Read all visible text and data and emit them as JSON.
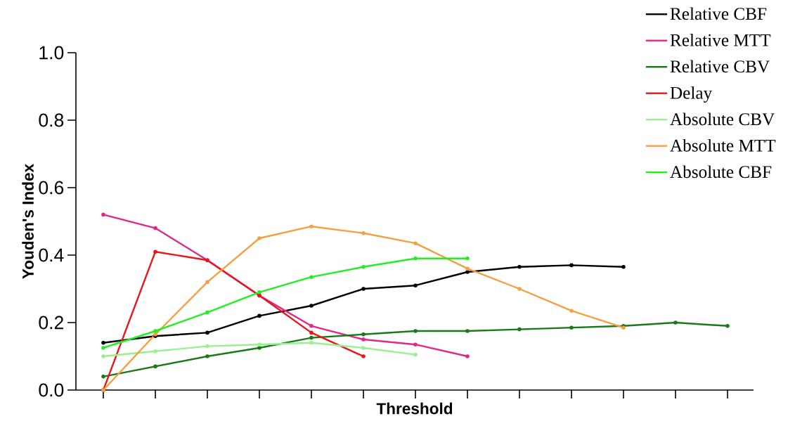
{
  "chart_data": {
    "type": "line",
    "xlabel": "Threshold",
    "ylabel": "Youden's Index",
    "categories": [
      null,
      null,
      null,
      null,
      null,
      null,
      null,
      null,
      null,
      null,
      null,
      null,
      null
    ],
    "ylim": [
      0,
      1.0
    ],
    "yticks": [
      {
        "value": 0,
        "label": "0.0"
      },
      0.2,
      0.4,
      0.6,
      0.8,
      {
        "value": 1.0,
        "label": "1.0"
      }
    ],
    "tick_labels": "y",
    "legend": "top right",
    "marker": "circle",
    "line_style": "solid",
    "series": [
      {
        "name": "Relative CBF",
        "color": "#000000",
        "values": [
          0.14,
          0.16,
          0.17,
          0.22,
          0.25,
          0.3,
          0.31,
          0.35,
          0.365,
          0.37,
          0.365,
          null,
          null
        ]
      },
      {
        "name": "Relative MTT",
        "color": "#e0288c",
        "values": [
          0.52,
          0.48,
          0.385,
          0.28,
          0.19,
          0.15,
          0.135,
          0.1,
          null,
          null,
          null,
          null,
          null
        ]
      },
      {
        "name": "Relative CBV",
        "color": "#1a7a1a",
        "values": [
          0.04,
          0.07,
          0.1,
          0.125,
          0.155,
          0.165,
          0.175,
          0.175,
          0.18,
          0.185,
          0.19,
          0.2,
          0.19
        ]
      },
      {
        "name": "Delay",
        "color": "#e8161a",
        "values": [
          0,
          0.41,
          0.385,
          0.28,
          0.17,
          0.1,
          null,
          null,
          null,
          null,
          null,
          null,
          null
        ]
      },
      {
        "name": "Absolute CBV",
        "color": "#98f090",
        "values": [
          0.1,
          0.115,
          0.13,
          0.135,
          0.14,
          0.125,
          0.105,
          null,
          null,
          null,
          null,
          null,
          null
        ]
      },
      {
        "name": "Absolute MTT",
        "color": "#f4a040",
        "values": [
          0,
          0.165,
          0.32,
          0.45,
          0.485,
          0.465,
          0.435,
          0.36,
          0.3,
          0.235,
          0.185,
          null,
          null
        ]
      },
      {
        "name": "Absolute CBF",
        "color": "#22ee22",
        "values": [
          0.125,
          0.175,
          0.23,
          0.29,
          0.335,
          0.365,
          0.39,
          0.39,
          null,
          null,
          null,
          null,
          null
        ]
      }
    ]
  }
}
